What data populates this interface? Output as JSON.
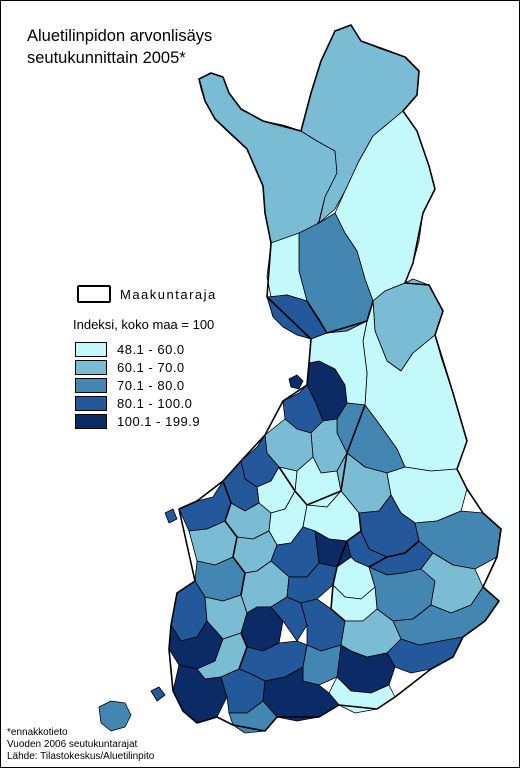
{
  "title": {
    "line1": "Aluetilinpidon arvonlisäys",
    "line2": "seutukunnittain 2005*"
  },
  "legend": {
    "border_label": "Maakuntaraja",
    "index_label": "Indeksi, koko maa = 100",
    "classes": [
      {
        "label": "48.1 - 60.0",
        "color": "#c3f9fb"
      },
      {
        "label": "60.1 - 70.0",
        "color": "#7abcd4"
      },
      {
        "label": "70.1 - 80.0",
        "color": "#4486b2"
      },
      {
        "label": "80.1 - 100.0",
        "color": "#23589a"
      },
      {
        "label": "100.1 - 199.9",
        "color": "#0b2b66"
      }
    ]
  },
  "footnote": {
    "line1": "*ennakkotieto",
    "line2": "Vuoden 2006 seutukuntarajat",
    "line3": "Lähde: Tilastokeskus/Aluetilinpito"
  }
}
